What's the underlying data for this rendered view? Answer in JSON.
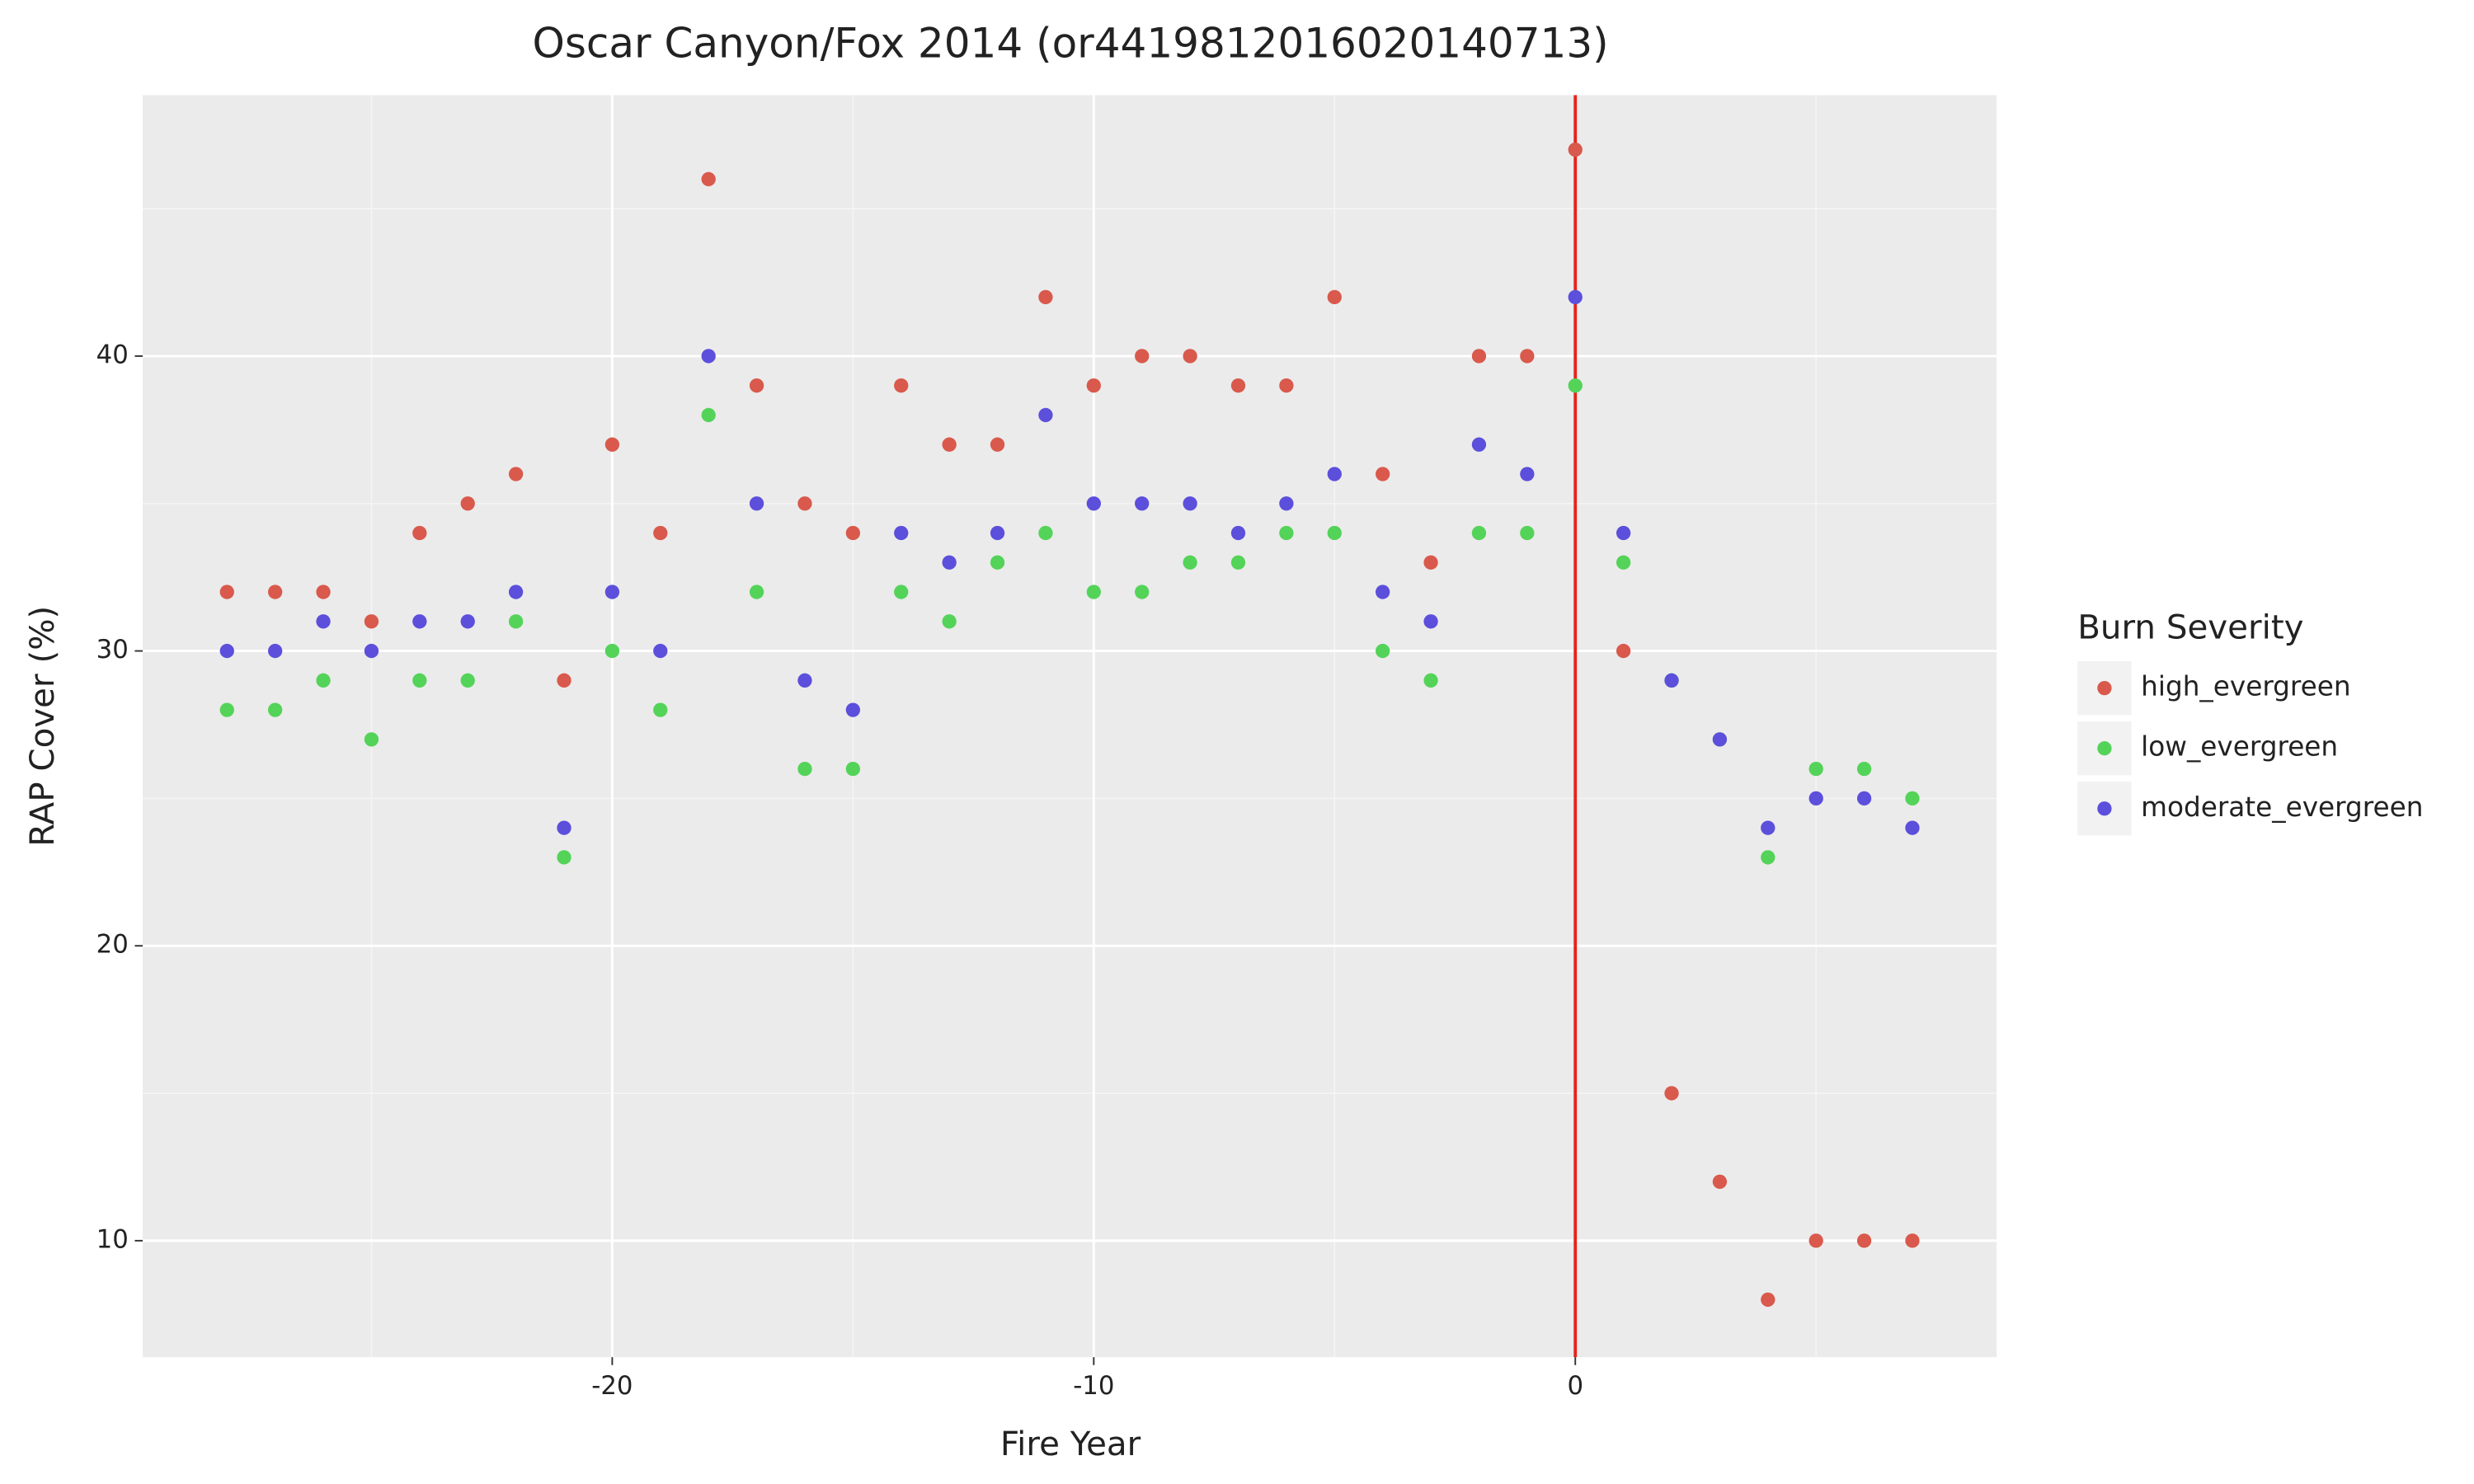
{
  "chart_data": {
    "type": "scatter",
    "title": "Oscar Canyon/Fox 2014 (or4419812016020140713)",
    "x_label": "Fire Year",
    "y_label": "RAP Cover (%)",
    "legend_title": "Burn Severity",
    "legend_position": "right",
    "x": [
      -28,
      -27,
      -26,
      -25,
      -24,
      -23,
      -22,
      -21,
      -20,
      -19,
      -18,
      -17,
      -16,
      -15,
      -14,
      -13,
      -12,
      -11,
      -10,
      -9,
      -8,
      -7,
      -6,
      -5,
      -4,
      -3,
      -2,
      -1,
      0,
      1,
      2,
      3,
      4,
      5,
      6,
      7
    ],
    "series": [
      {
        "name": "high_evergreen",
        "color": "#d9594c",
        "values": [
          32,
          32,
          32,
          31,
          34,
          35,
          36,
          29,
          37,
          34,
          46,
          39,
          35,
          34,
          39,
          37,
          37,
          42,
          39,
          40,
          40,
          39,
          39,
          42,
          36,
          33,
          40,
          40,
          47,
          30,
          15,
          12,
          8,
          10,
          10,
          10
        ]
      },
      {
        "name": "low_evergreen",
        "color": "#54d359",
        "values": [
          28,
          28,
          29,
          27,
          29,
          29,
          31,
          23,
          30,
          28,
          38,
          32,
          26,
          26,
          32,
          31,
          33,
          34,
          32,
          32,
          33,
          33,
          34,
          34,
          30,
          29,
          34,
          34,
          39,
          33,
          29,
          27,
          23,
          26,
          26,
          25
        ]
      },
      {
        "name": "moderate_evergreen",
        "color": "#5c4fdb",
        "values": [
          30,
          30,
          31,
          30,
          31,
          31,
          32,
          24,
          32,
          30,
          40,
          35,
          29,
          28,
          34,
          33,
          34,
          38,
          35,
          35,
          35,
          34,
          35,
          36,
          32,
          31,
          37,
          36,
          42,
          34,
          29,
          27,
          24,
          25,
          25,
          24
        ]
      }
    ],
    "vline": {
      "x": 0,
      "color": "#e8221b"
    },
    "xlim": [
      -29.75,
      8.75
    ],
    "ylim": [
      6.05,
      48.85
    ],
    "xticks": [
      -20,
      -10,
      0
    ],
    "yticks": [
      10,
      20,
      30,
      40
    ],
    "x_minor_ticks": [
      -25,
      -15,
      -5,
      5
    ],
    "y_minor_ticks": [
      15,
      25,
      35,
      45
    ],
    "grid": true
  }
}
